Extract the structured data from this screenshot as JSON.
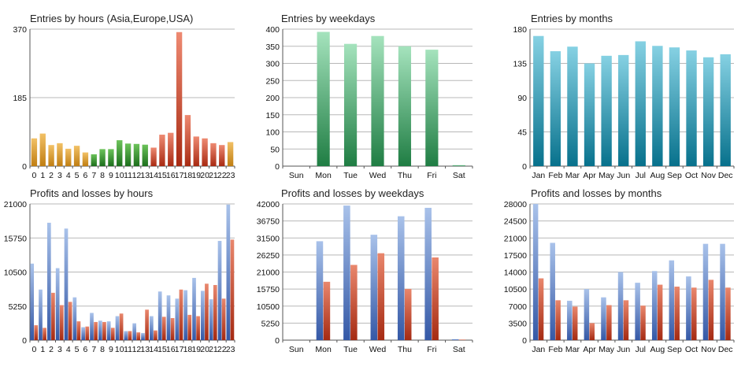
{
  "colors": {
    "orange": [
      "#f2c166",
      "#c07e12"
    ],
    "green": [
      "#6cc35a",
      "#1c6e1c"
    ],
    "red": [
      "#ee8a72",
      "#a82a12"
    ],
    "mint": [
      "#a5e3bd",
      "#1f7d43"
    ],
    "teal": [
      "#86d1e3",
      "#07718c"
    ],
    "blue": [
      "#a9c2ea",
      "#3458a6"
    ],
    "lossred": [
      "#e9876d",
      "#a52a12"
    ]
  },
  "chart_data": [
    {
      "type": "bar",
      "title": "Entries by hours (Asia,Europe,USA)",
      "categories": [
        "0",
        "1",
        "2",
        "3",
        "4",
        "5",
        "6",
        "7",
        "8",
        "9",
        "10",
        "11",
        "12",
        "13",
        "14",
        "15",
        "16",
        "17",
        "18",
        "19",
        "20",
        "21",
        "22",
        "23"
      ],
      "ylim": [
        0,
        370
      ],
      "yticks": [
        0,
        185,
        370
      ],
      "series": [
        {
          "values": [
            75,
            88,
            57,
            62,
            47,
            55,
            37,
            32,
            46,
            46,
            70,
            61,
            60,
            58,
            50,
            85,
            90,
            362,
            138,
            80,
            75,
            62,
            57,
            65
          ],
          "colors": [
            "orange",
            "orange",
            "orange",
            "orange",
            "orange",
            "orange",
            "orange",
            "green",
            "green",
            "green",
            "green",
            "green",
            "green",
            "green",
            "red",
            "red",
            "red",
            "red",
            "red",
            "red",
            "red",
            "red",
            "red",
            "orange"
          ]
        }
      ]
    },
    {
      "type": "bar",
      "title": "Entries by weekdays",
      "categories": [
        "Sun",
        "Mon",
        "Tue",
        "Wed",
        "Thu",
        "Fri",
        "Sat"
      ],
      "ylim": [
        0,
        400
      ],
      "yticks": [
        0,
        50,
        100,
        150,
        200,
        250,
        300,
        350,
        400
      ],
      "series": [
        {
          "values": [
            0,
            392,
            357,
            380,
            350,
            340,
            3
          ],
          "color": "mint"
        }
      ]
    },
    {
      "type": "bar",
      "title": "Entries by months",
      "categories": [
        "Jan",
        "Feb",
        "Mar",
        "Apr",
        "May",
        "Jun",
        "Jul",
        "Aug",
        "Sep",
        "Oct",
        "Nov",
        "Dec"
      ],
      "ylim": [
        0,
        180
      ],
      "yticks": [
        0,
        45,
        90,
        135,
        180
      ],
      "series": [
        {
          "values": [
            171,
            151,
            157,
            135,
            145,
            146,
            164,
            158,
            156,
            152,
            143,
            147
          ],
          "color": "teal"
        }
      ]
    },
    {
      "type": "bar",
      "title": "Profits and losses by hours",
      "categories": [
        "0",
        "1",
        "2",
        "3",
        "4",
        "5",
        "6",
        "7",
        "8",
        "9",
        "10",
        "11",
        "12",
        "13",
        "14",
        "15",
        "16",
        "17",
        "18",
        "19",
        "20",
        "21",
        "22",
        "23"
      ],
      "ylim": [
        0,
        21000
      ],
      "yticks": [
        0,
        5250,
        10500,
        15750,
        21000
      ],
      "series": [
        {
          "values": [
            11800,
            7800,
            18100,
            11100,
            17200,
            6600,
            2000,
            4200,
            3000,
            2900,
            3700,
            1400,
            2600,
            1100,
            3700,
            7500,
            6900,
            6400,
            7700,
            9600,
            7600,
            6300,
            15300,
            20900
          ],
          "color": "blue"
        },
        {
          "values": [
            2300,
            1900,
            7300,
            5400,
            5900,
            2900,
            2100,
            2800,
            2800,
            1900,
            4100,
            1400,
            1200,
            4700,
            1500,
            3600,
            3400,
            7800,
            3900,
            3700,
            8700,
            8500,
            6400,
            15500
          ],
          "color": "lossred"
        }
      ]
    },
    {
      "type": "bar",
      "title": "Profits and losses by weekdays",
      "categories": [
        "Sun",
        "Mon",
        "Tue",
        "Wed",
        "Thu",
        "Fri",
        "Sat"
      ],
      "ylim": [
        0,
        42000
      ],
      "yticks": [
        0,
        5250,
        10500,
        15750,
        21000,
        26250,
        31500,
        36750,
        42000
      ],
      "series": [
        {
          "values": [
            0,
            30500,
            41500,
            32500,
            38200,
            40800,
            300
          ],
          "color": "blue"
        },
        {
          "values": [
            0,
            18000,
            23200,
            26800,
            15800,
            25500,
            150
          ],
          "color": "lossred"
        }
      ]
    },
    {
      "type": "bar",
      "title": "Profits and losses by months",
      "categories": [
        "Jan",
        "Feb",
        "Mar",
        "Apr",
        "May",
        "Jun",
        "Jul",
        "Aug",
        "Sep",
        "Oct",
        "Nov",
        "Dec"
      ],
      "ylim": [
        0,
        28000
      ],
      "yticks": [
        0,
        3500,
        7000,
        10500,
        14000,
        17500,
        21000,
        24500,
        28000
      ],
      "series": [
        {
          "values": [
            28000,
            20000,
            8100,
            10500,
            8800,
            14000,
            11800,
            14200,
            16400,
            13100,
            19800,
            19800
          ],
          "color": "blue"
        },
        {
          "values": [
            12700,
            8200,
            6900,
            3500,
            7200,
            8200,
            7100,
            11400,
            11000,
            10800,
            12400,
            10800
          ],
          "color": "lossred"
        }
      ]
    }
  ]
}
